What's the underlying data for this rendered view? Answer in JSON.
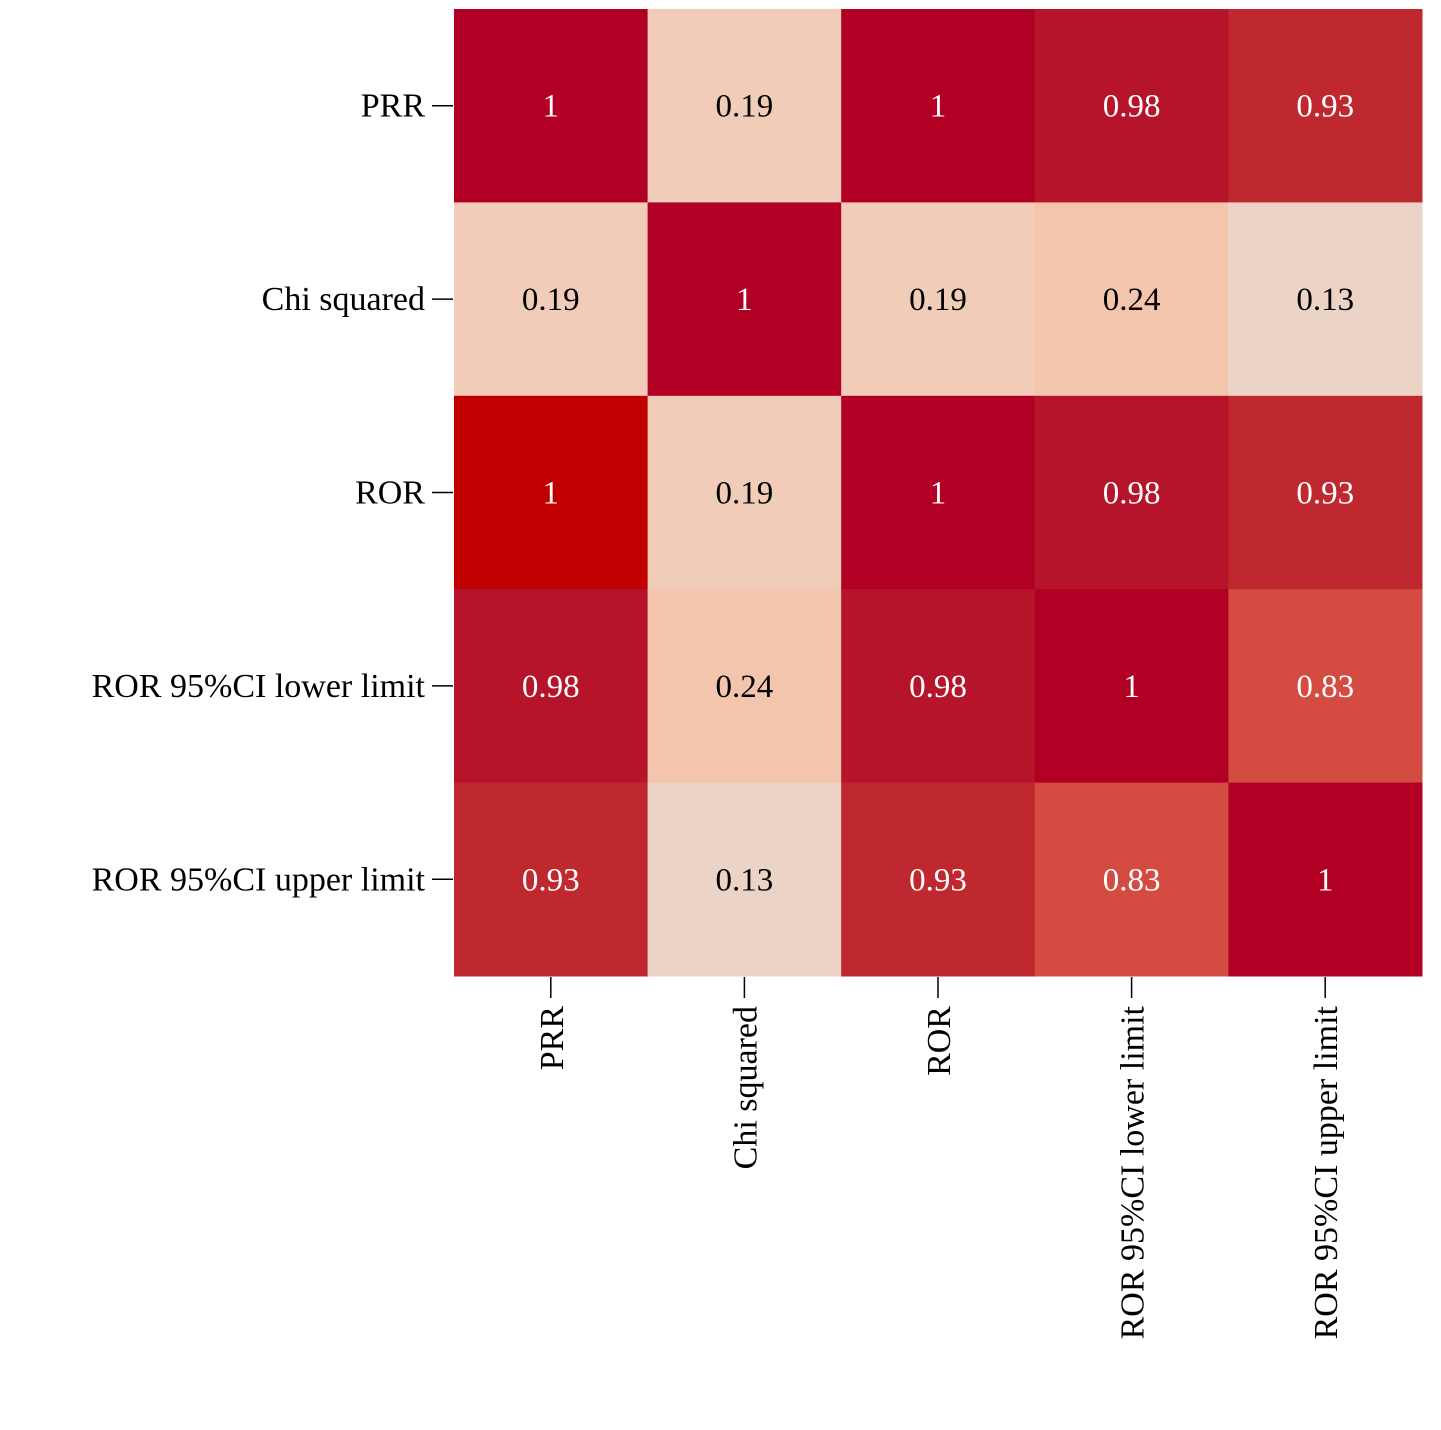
{
  "chart_data": {
    "type": "heatmap",
    "title": "",
    "xlabel": "",
    "ylabel": "",
    "row_labels": [
      "PRR",
      "Chi squared",
      "ROR",
      "ROR 95%CI lower limit",
      "ROR 95%CI upper limit"
    ],
    "col_labels": [
      "PRR",
      "Chi squared",
      "ROR",
      "ROR 95%CI lower limit",
      "ROR 95%CI upper limit"
    ],
    "values": [
      [
        1,
        0.19,
        1,
        0.98,
        0.93
      ],
      [
        0.19,
        1,
        0.19,
        0.24,
        0.13
      ],
      [
        1,
        0.19,
        1,
        0.98,
        0.93
      ],
      [
        0.98,
        0.24,
        0.98,
        1,
        0.83
      ],
      [
        0.93,
        0.13,
        0.93,
        0.83,
        1
      ]
    ],
    "labels": [
      [
        "1",
        "0.19",
        "1",
        "0.98",
        "0.93"
      ],
      [
        "0.19",
        "1",
        "0.19",
        "0.24",
        "0.13"
      ],
      [
        "1",
        "0.19",
        "1",
        "0.98",
        "0.93"
      ],
      [
        "0.98",
        "0.24",
        "0.98",
        "1",
        "0.83"
      ],
      [
        "0.93",
        "0.13",
        "0.93",
        "0.83",
        "1"
      ]
    ],
    "colors": [
      [
        "#b20024",
        "#f1cdb9",
        "#b20024",
        "#b5142a",
        "#c0282f"
      ],
      [
        "#f1cdb9",
        "#b20024",
        "#f1cdb9",
        "#f4c5ad",
        "#ebd4c6"
      ],
      [
        "#c00000",
        "#f1cdb9",
        "#b20024",
        "#b5142a",
        "#c0282f"
      ],
      [
        "#b5142a",
        "#f4c5ad",
        "#b5142a",
        "#b20024",
        "#d44c41"
      ],
      [
        "#c0282f",
        "#ebd4c6",
        "#c0282f",
        "#d44c41",
        "#b20024"
      ]
    ],
    "text_colors": {
      "dark": "#000000",
      "light": "#ffffff"
    }
  }
}
